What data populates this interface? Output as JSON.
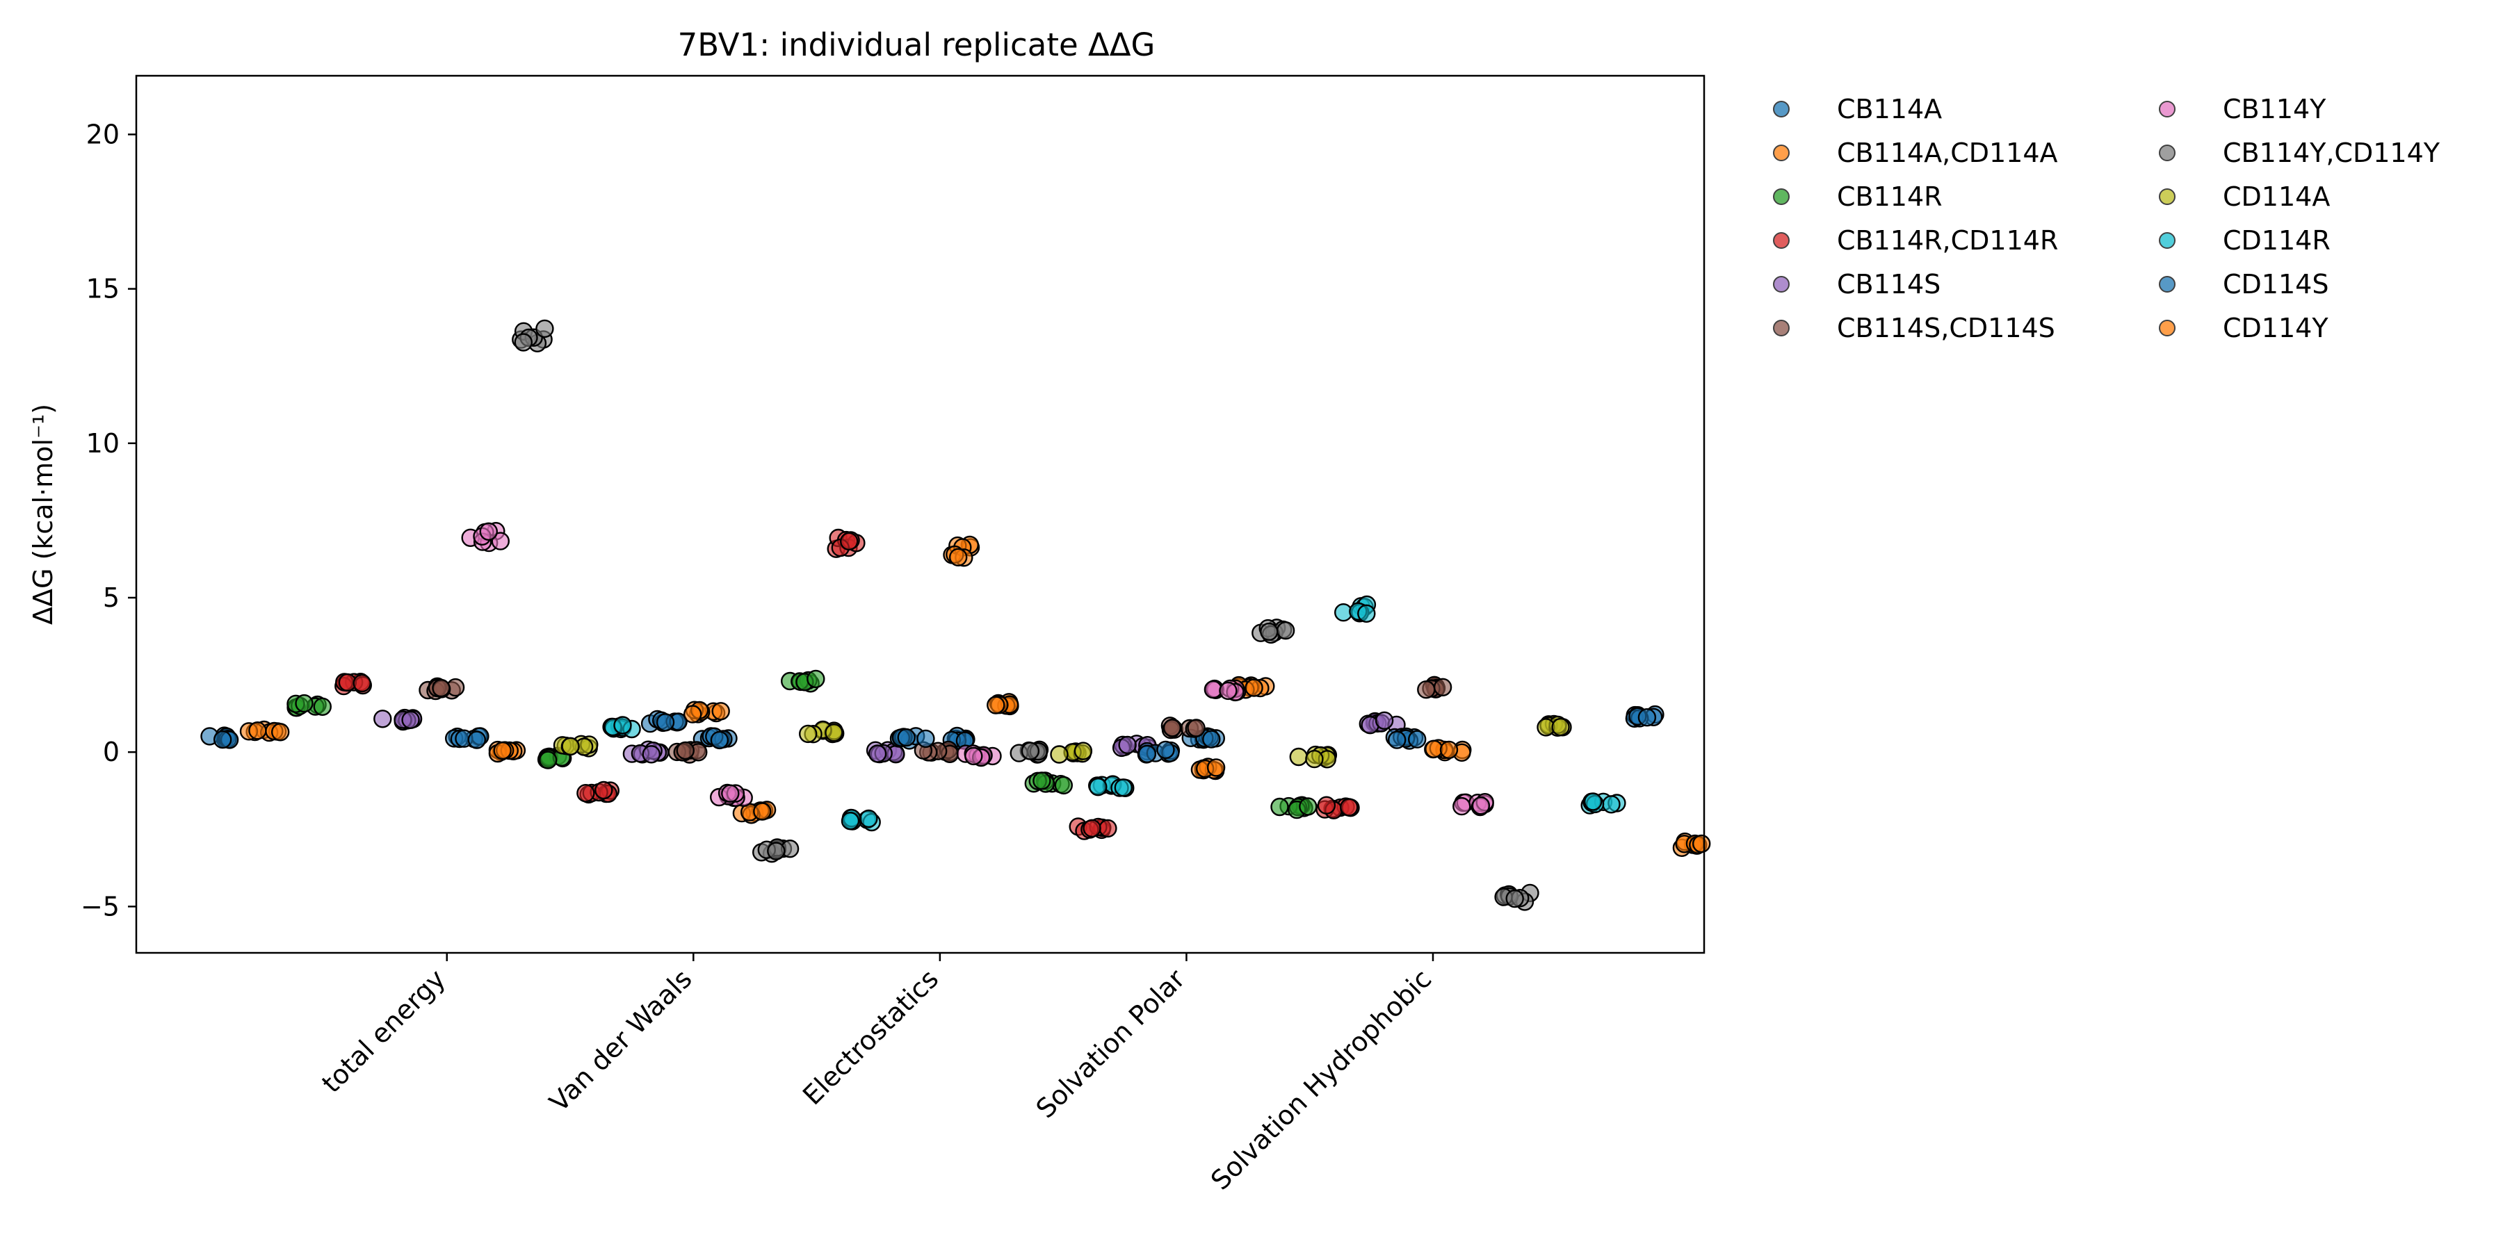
{
  "chart_data": {
    "type": "scatter",
    "title": "7BV1: individual replicate ΔΔG",
    "xlabel": "",
    "ylabel": "ΔΔG (kcal·mol⁻¹)",
    "ylim": [
      -6.5,
      21.9
    ],
    "yticks": [
      -5,
      0,
      5,
      10,
      15,
      20
    ],
    "grid": false,
    "legend_placement": "outside-top-right",
    "categories": [
      "total energy",
      "Van der Waals",
      "Electrostatics",
      "Solvation Polar",
      "Solvation Hydrophobic"
    ],
    "category_x": [
      0,
      1,
      2,
      3,
      4
    ],
    "xlim": [
      -1.26,
      5.1
    ],
    "series_offsets": [
      -0.92,
      -0.74,
      -0.56,
      -0.38,
      -0.2,
      -0.02,
      0.16,
      0.34,
      0.52,
      0.7,
      0.88,
      1.06
    ],
    "series": [
      {
        "name": "CB114A",
        "color": "#1f77b4",
        "values": [
          0.45,
          0.45,
          0.45,
          0.45,
          0.45
        ]
      },
      {
        "name": "CB114A,CD114A",
        "color": "#ff7f0e",
        "values": [
          0.65,
          0.0,
          -1.95,
          1.55,
          2.1
        ]
      },
      {
        "name": "CB114R",
        "color": "#2ca02c",
        "values": [
          1.5,
          -0.2,
          2.3,
          -1.0,
          -1.8
        ]
      },
      {
        "name": "CB114R,CD114R",
        "color": "#d62728",
        "values": [
          2.2,
          -1.3,
          6.8,
          -2.5,
          -1.8
        ]
      },
      {
        "name": "CB114S",
        "color": "#9467bd",
        "values": [
          1.05,
          0.0,
          0.0,
          0.2,
          0.95
        ]
      },
      {
        "name": "CB114S,CD114S",
        "color": "#8c564b",
        "values": [
          2.05,
          0.0,
          0.0,
          0.8,
          2.1
        ]
      },
      {
        "name": "CB114Y",
        "color": "#e377c2",
        "values": [
          7.0,
          -1.4,
          -0.1,
          2.0,
          -1.7
        ]
      },
      {
        "name": "CB114Y,CD114Y",
        "color": "#7f7f7f",
        "values": [
          13.5,
          -3.2,
          0.0,
          3.9,
          -4.7
        ]
      },
      {
        "name": "CD114A",
        "color": "#bcbd22",
        "values": [
          0.2,
          0.65,
          0.0,
          -0.15,
          0.85
        ]
      },
      {
        "name": "CD114R",
        "color": "#17becf",
        "values": [
          0.8,
          -2.2,
          -1.1,
          4.65,
          -1.65
        ]
      },
      {
        "name": "CD114S",
        "color": "#1f77b4",
        "values": [
          1.0,
          0.45,
          0.0,
          0.45,
          1.15
        ]
      },
      {
        "name": "CD114Y",
        "color": "#ff7f0e",
        "values": [
          1.3,
          6.5,
          -0.55,
          0.05,
          -3.0
        ]
      }
    ]
  }
}
